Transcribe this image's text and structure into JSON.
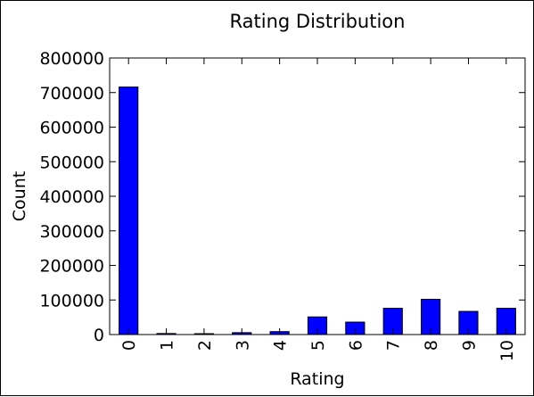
{
  "chart_data": {
    "type": "bar",
    "title": "Rating Distribution",
    "xlabel": "Rating",
    "ylabel": "Count",
    "categories": [
      "0",
      "1",
      "2",
      "3",
      "4",
      "5",
      "6",
      "7",
      "8",
      "9",
      "10"
    ],
    "values": [
      716000,
      3000,
      2500,
      5500,
      8500,
      51000,
      36000,
      76000,
      102000,
      67000,
      76000
    ],
    "ylim": [
      0,
      800000
    ],
    "yticks": [
      "0",
      "100000",
      "200000",
      "300000",
      "400000",
      "500000",
      "600000",
      "700000",
      "800000"
    ],
    "bar_color": "#0000ff",
    "grid": false,
    "legend": "none"
  }
}
